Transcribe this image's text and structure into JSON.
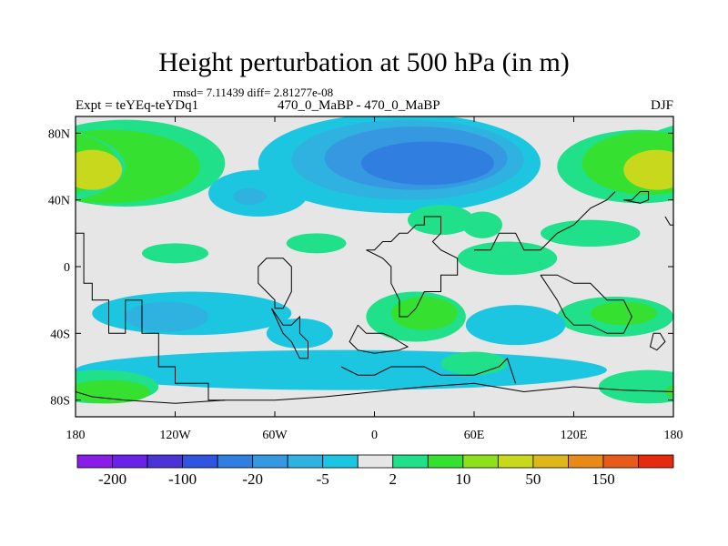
{
  "chart_data": {
    "type": "heatmap",
    "title": "Height perturbation at 500 hPa (in m)",
    "stats_label": "rmsd= 7.11439 diff= 2.81277e-08",
    "left_label": "Expt = teYEq-teYDq1",
    "center_label": "470_0_MaBP - 470_0_MaBP",
    "right_label": "DJF",
    "xlim": [
      -180,
      180
    ],
    "ylim": [
      -90,
      90
    ],
    "x_ticks": [
      {
        "value": -180,
        "label": "180"
      },
      {
        "value": -120,
        "label": "120W"
      },
      {
        "value": -60,
        "label": "60W"
      },
      {
        "value": 0,
        "label": "0"
      },
      {
        "value": 60,
        "label": "60E"
      },
      {
        "value": 120,
        "label": "120E"
      },
      {
        "value": 180,
        "label": "180"
      }
    ],
    "y_ticks": [
      {
        "value": 80,
        "label": "80N"
      },
      {
        "value": 40,
        "label": "40N"
      },
      {
        "value": 0,
        "label": "0"
      },
      {
        "value": -40,
        "label": "40S"
      },
      {
        "value": -80,
        "label": "80S"
      }
    ],
    "contour_levels": [
      -200,
      -150,
      -100,
      -50,
      -20,
      -10,
      -5,
      -2,
      2,
      5,
      10,
      20,
      50,
      100,
      150,
      200
    ],
    "colorbar_labels": [
      {
        "level": -200,
        "label": "-200"
      },
      {
        "level": -100,
        "label": "-100"
      },
      {
        "level": -20,
        "label": "-20"
      },
      {
        "level": -5,
        "label": "-5"
      },
      {
        "level": 2,
        "label": "2"
      },
      {
        "level": 10,
        "label": "10"
      },
      {
        "level": 50,
        "label": "50"
      },
      {
        "level": 150,
        "label": "150"
      }
    ],
    "colors": [
      "#8a1ce8",
      "#6a22e8",
      "#4b33d8",
      "#2f55e0",
      "#2f7ee0",
      "#3598e0",
      "#2fb2e0",
      "#1cc6e0",
      "#e6e6e6",
      "#20e08a",
      "#36e030",
      "#8ce01c",
      "#c8d81c",
      "#dcb81a",
      "#e88a1a",
      "#e85a1a",
      "#e62a12"
    ],
    "background_color": "#e6e6e6",
    "features": [
      {
        "name": "n-pacific-high",
        "lon": -160,
        "lat": 60,
        "rx": 55,
        "ry": 22,
        "value": 8
      },
      {
        "name": "n-pacific-high-core",
        "lon": -170,
        "lat": 58,
        "rx": 18,
        "ry": 12,
        "value": 25
      },
      {
        "name": "n-pacific-high-rim",
        "lon": -150,
        "lat": 62,
        "rx": 60,
        "ry": 26,
        "value": 3
      },
      {
        "name": "n-atlantic-low-outer",
        "lon": 15,
        "lat": 62,
        "rx": 85,
        "ry": 30,
        "value": -3
      },
      {
        "name": "n-atlantic-low-mid",
        "lon": 20,
        "lat": 64,
        "rx": 70,
        "ry": 24,
        "value": -7
      },
      {
        "name": "n-atlantic-low-inner",
        "lon": 25,
        "lat": 65,
        "rx": 55,
        "ry": 19,
        "value": -12
      },
      {
        "name": "n-atlantic-low-core",
        "lon": 32,
        "lat": 62,
        "rx": 40,
        "ry": 13,
        "value": -25
      },
      {
        "name": "n-america-low",
        "lon": -70,
        "lat": 44,
        "rx": 30,
        "ry": 14,
        "value": -3
      },
      {
        "name": "n-america-low-core",
        "lon": -75,
        "lat": 42,
        "rx": 10,
        "ry": 5,
        "value": -7
      },
      {
        "name": "asia-high-outer",
        "lon": 160,
        "lat": 60,
        "rx": 50,
        "ry": 22,
        "value": 3
      },
      {
        "name": "asia-high-mid",
        "lon": 165,
        "lat": 62,
        "rx": 40,
        "ry": 19,
        "value": 8
      },
      {
        "name": "asia-high-core",
        "lon": 170,
        "lat": 58,
        "rx": 20,
        "ry": 12,
        "value": 25
      },
      {
        "name": "eq-pacific-east",
        "lon": -120,
        "lat": 8,
        "rx": 20,
        "ry": 6,
        "value": 3
      },
      {
        "name": "eq-atlantic",
        "lon": -35,
        "lat": 14,
        "rx": 18,
        "ry": 6,
        "value": 3
      },
      {
        "name": "africa-north",
        "lon": 40,
        "lat": 28,
        "rx": 20,
        "ry": 9,
        "value": 3
      },
      {
        "name": "arabia",
        "lon": 65,
        "lat": 25,
        "rx": 12,
        "ry": 8,
        "value": 3
      },
      {
        "name": "indian-band",
        "lon": 80,
        "lat": 5,
        "rx": 30,
        "ry": 10,
        "value": 3
      },
      {
        "name": "nw-pacific-band",
        "lon": 130,
        "lat": 20,
        "rx": 30,
        "ry": 8,
        "value": 3
      },
      {
        "name": "se-pacific-band",
        "lon": -110,
        "lat": -28,
        "rx": 60,
        "ry": 13,
        "value": -3
      },
      {
        "name": "se-pacific-core",
        "lon": -125,
        "lat": -30,
        "rx": 25,
        "ry": 9,
        "value": -7
      },
      {
        "name": "s-america-low",
        "lon": -45,
        "lat": -40,
        "rx": 20,
        "ry": 9,
        "value": -3
      },
      {
        "name": "s-africa-high",
        "lon": 25,
        "lat": -30,
        "rx": 30,
        "ry": 15,
        "value": 3
      },
      {
        "name": "s-africa-high-core",
        "lon": 30,
        "lat": -28,
        "rx": 20,
        "ry": 10,
        "value": 7
      },
      {
        "name": "indian-low",
        "lon": 85,
        "lat": -35,
        "rx": 30,
        "ry": 12,
        "value": -3
      },
      {
        "name": "s-pacific-high-west",
        "lon": 145,
        "lat": -30,
        "rx": 35,
        "ry": 12,
        "value": 3
      },
      {
        "name": "s-pacific-high-west-core",
        "lon": 150,
        "lat": -28,
        "rx": 20,
        "ry": 7,
        "value": 7
      },
      {
        "name": "southern-ocean-low",
        "lon": -20,
        "lat": -62,
        "rx": 160,
        "ry": 12,
        "value": -3
      },
      {
        "name": "southern-high-west",
        "lon": -165,
        "lat": -72,
        "rx": 35,
        "ry": 10,
        "value": 3
      },
      {
        "name": "southern-high-west-core",
        "lon": -160,
        "lat": -75,
        "rx": 25,
        "ry": 7,
        "value": 7
      },
      {
        "name": "southern-high-east",
        "lon": 165,
        "lat": -72,
        "rx": 30,
        "ry": 10,
        "value": 3
      },
      {
        "name": "southern-ocean-east",
        "lon": 60,
        "lat": -58,
        "rx": 20,
        "ry": 7,
        "value": 3
      }
    ]
  }
}
